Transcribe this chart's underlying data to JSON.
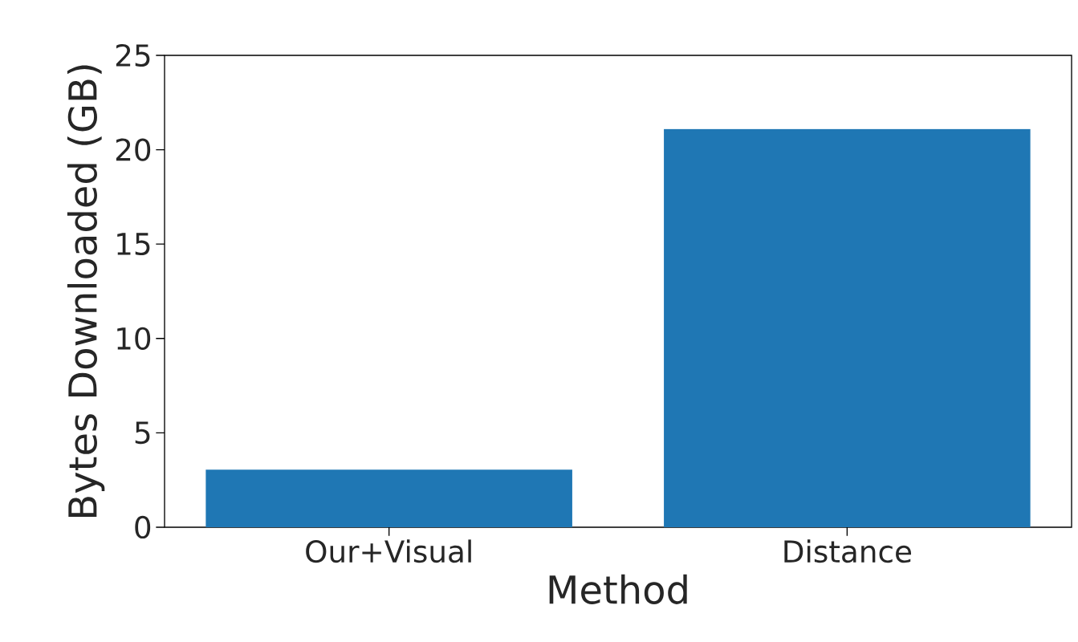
{
  "chart_data": {
    "type": "bar",
    "categories": [
      "Our+Visual",
      "Distance"
    ],
    "values": [
      3.05,
      21.1
    ],
    "color": "#1f77b4",
    "xlabel": "Method",
    "ylabel": "Bytes Downloaded (GB)",
    "ylim": [
      0,
      25
    ],
    "yticks": [
      0,
      5,
      10,
      15,
      20,
      25
    ]
  }
}
